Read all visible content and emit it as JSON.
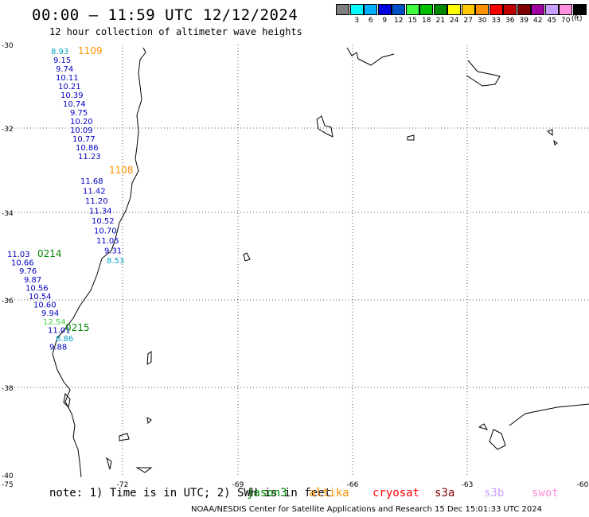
{
  "title": "00:00 – 11:59 UTC 12/12/2024",
  "subtitle": "12 hour collection of altimeter wave heights",
  "legend": {
    "unit": "(ft)",
    "items": [
      {
        "label": "",
        "color": "#7f7f7f"
      },
      {
        "label": "3",
        "color": "#00ffff"
      },
      {
        "label": "6",
        "color": "#00b0ff"
      },
      {
        "label": "9",
        "color": "#0000e0"
      },
      {
        "label": "12",
        "color": "#0050c8"
      },
      {
        "label": "15",
        "color": "#40ff40"
      },
      {
        "label": "18",
        "color": "#00c000"
      },
      {
        "label": "21",
        "color": "#008800"
      },
      {
        "label": "24",
        "color": "#ffff00"
      },
      {
        "label": "27",
        "color": "#ffc800"
      },
      {
        "label": "30",
        "color": "#ff9000"
      },
      {
        "label": "33",
        "color": "#ff0000"
      },
      {
        "label": "36",
        "color": "#c00000"
      },
      {
        "label": "39",
        "color": "#800000"
      },
      {
        "label": "42",
        "color": "#a000a0"
      },
      {
        "label": "45",
        "color": "#c8a0ff"
      },
      {
        "label": "70",
        "color": "#ff90e0"
      },
      {
        "label": "",
        "color": "#000000"
      }
    ]
  },
  "axes": {
    "lat_labels": [
      "-30",
      "-32",
      "-34",
      "-36",
      "-38",
      "-40"
    ],
    "lon_labels": [
      "-75",
      "-72",
      "-69",
      "-66",
      "-63",
      "-60"
    ]
  },
  "tracks": [
    {
      "time": "1109",
      "time_color": "#ff9000",
      "color": "#0000c0",
      "values": [
        "8.93",
        "9.15",
        "9.74",
        "10.11",
        "10.21",
        "10.39",
        "10.74",
        "9.75",
        "10.20",
        "10.09",
        "10.77",
        "10.86",
        "11.23"
      ],
      "value_colors": {
        "0": "#00a0c0"
      }
    },
    {
      "time": "1108",
      "time_color": "#ff9000",
      "color": "#0000c0",
      "values": [
        "11.68",
        "11.42",
        "11.20",
        "11.34",
        "10.52",
        "10.70",
        "11.05",
        "9.31",
        "8.53"
      ],
      "value_colors": {
        "8": "#00a0c0"
      }
    },
    {
      "time": "0214",
      "time_color": "#008800",
      "color": "#0000c0",
      "values": [
        "11.03",
        "10.66",
        "9.76",
        "9.87",
        "10.56",
        "10.54",
        "10.60",
        "9.94",
        "12.54",
        "11.01",
        "8.86",
        "9.88"
      ],
      "value_colors": {
        "8": "#40d040",
        "10": "#00a0c0"
      }
    },
    {
      "time": "0215",
      "time_color": "#008800"
    }
  ],
  "note": "note:  1) Time is in UTC; 2) SWH is in feet",
  "satellites": [
    {
      "name": "jason3",
      "color": "#008800"
    },
    {
      "name": "altika",
      "color": "#ff9000"
    },
    {
      "name": "cryosat",
      "color": "#ff0000"
    },
    {
      "name": "s3a",
      "color": "#800000"
    },
    {
      "name": "s3b",
      "color": "#c8a0ff"
    },
    {
      "name": "swot",
      "color": "#ff90e0"
    }
  ],
  "credit": "NOAA/NESDIS Center for Satellite Applications and Research    15 Dec 15:01:33 UTC 2024"
}
